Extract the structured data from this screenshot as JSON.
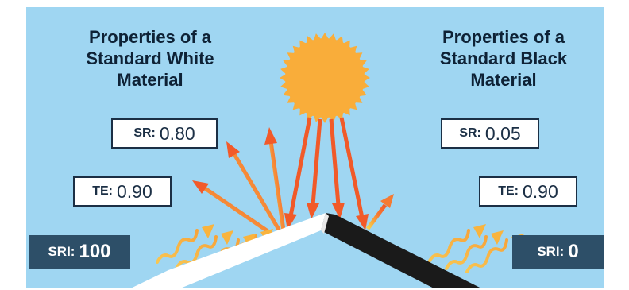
{
  "colors": {
    "sky": "#9fd6f2",
    "sun": "#f9ad3a",
    "incoming_ray": "#f26b3a",
    "reflected_ray": "#f26b3a",
    "emitted_heat": "#fbb03b",
    "label_border": "#1b2f45",
    "sri_box": "#2d4f68",
    "white_surface": "#ffffff",
    "black_surface": "#1a1a1a"
  },
  "white_material": {
    "heading_lines": [
      "Properties of a",
      "Standard White",
      "Material"
    ],
    "sr_label": "SR:",
    "sr_value": "0.80",
    "te_label": "TE:",
    "te_value": "0.90",
    "sri_label": "SRI:",
    "sri_value": "100"
  },
  "black_material": {
    "heading_lines": [
      "Properties of a",
      "Standard Black",
      "Material"
    ],
    "sr_label": "SR:",
    "sr_value": "0.05",
    "te_label": "TE:",
    "te_value": "0.90",
    "sri_label": "SRI:",
    "sri_value": "0"
  },
  "icons": {
    "sun": "sun-icon",
    "incoming": "incoming-sunlight-arrow",
    "reflected": "reflected-sunlight-arrow",
    "emitted": "emitted-heat-wave-arrow"
  }
}
